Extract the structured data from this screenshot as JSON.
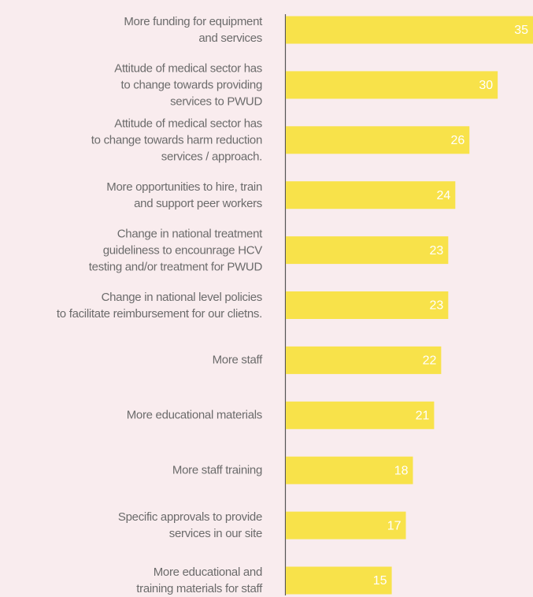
{
  "chart_data": {
    "type": "bar",
    "orientation": "horizontal",
    "color": "#f8e24a",
    "categories": [
      "More funding for equipment\nand services",
      "Attitude of medical sector has\nto change towards providing\nservices to PWUD",
      "Attitude of medical sector has\nto change towards harm reduction\nservices / approach.",
      "More opportunities to hire, train\nand support peer workers",
      "Change in national treatment\nguideliness to encounrage HCV\ntesting and/or treatment for PWUD",
      "Change in national level policies\nto facilitate reimbursement for our clietns.",
      "More staff",
      "More educational materials",
      "More staff training",
      "Specific approvals to provide\nservices in our site",
      "More educational and\ntraining materials for staff"
    ],
    "values": [
      35,
      30,
      26,
      24,
      23,
      23,
      22,
      21,
      18,
      17,
      15
    ],
    "xlim": [
      0,
      35
    ]
  }
}
